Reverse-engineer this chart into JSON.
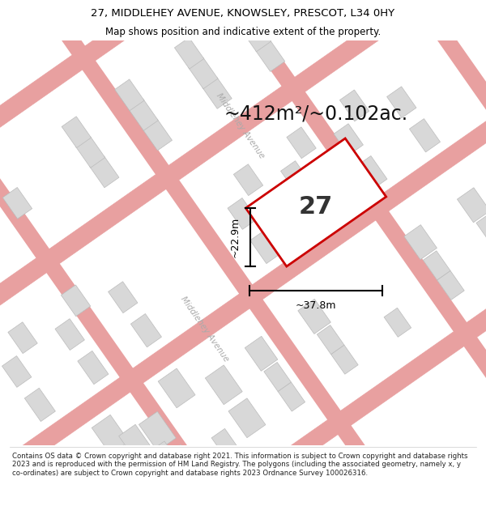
{
  "title_line1": "27, MIDDLEHEY AVENUE, KNOWSLEY, PRESCOT, L34 0HY",
  "title_line2": "Map shows position and indicative extent of the property.",
  "footer": "Contains OS data © Crown copyright and database right 2021. This information is subject to Crown copyright and database rights 2023 and is reproduced with the permission of HM Land Registry. The polygons (including the associated geometry, namely x, y co-ordinates) are subject to Crown copyright and database rights 2023 Ordnance Survey 100026316.",
  "area_label": "~412m²/~0.102ac.",
  "number_label": "27",
  "dim_width": "~37.8m",
  "dim_height": "~22.9m",
  "road_label_upper": "Middlehey Avenue",
  "road_label_lower": "Middlehey Avenue",
  "map_bg": "#f5f5f5",
  "building_fill": "#d8d8d8",
  "building_edge": "#bbbbbb",
  "road_line_color": "#e8a0a0",
  "plot_edge_color": "#cc0000",
  "plot_fill": "#ffffff",
  "dim_color": "#000000",
  "road_label_color": "#aaaaaa",
  "title_bg": "#ffffff",
  "footer_bg": "#ffffff",
  "title_fontsize": 9.5,
  "subtitle_fontsize": 8.5,
  "footer_fontsize": 6.2,
  "area_fontsize": 17,
  "number_fontsize": 22,
  "dim_fontsize": 9
}
